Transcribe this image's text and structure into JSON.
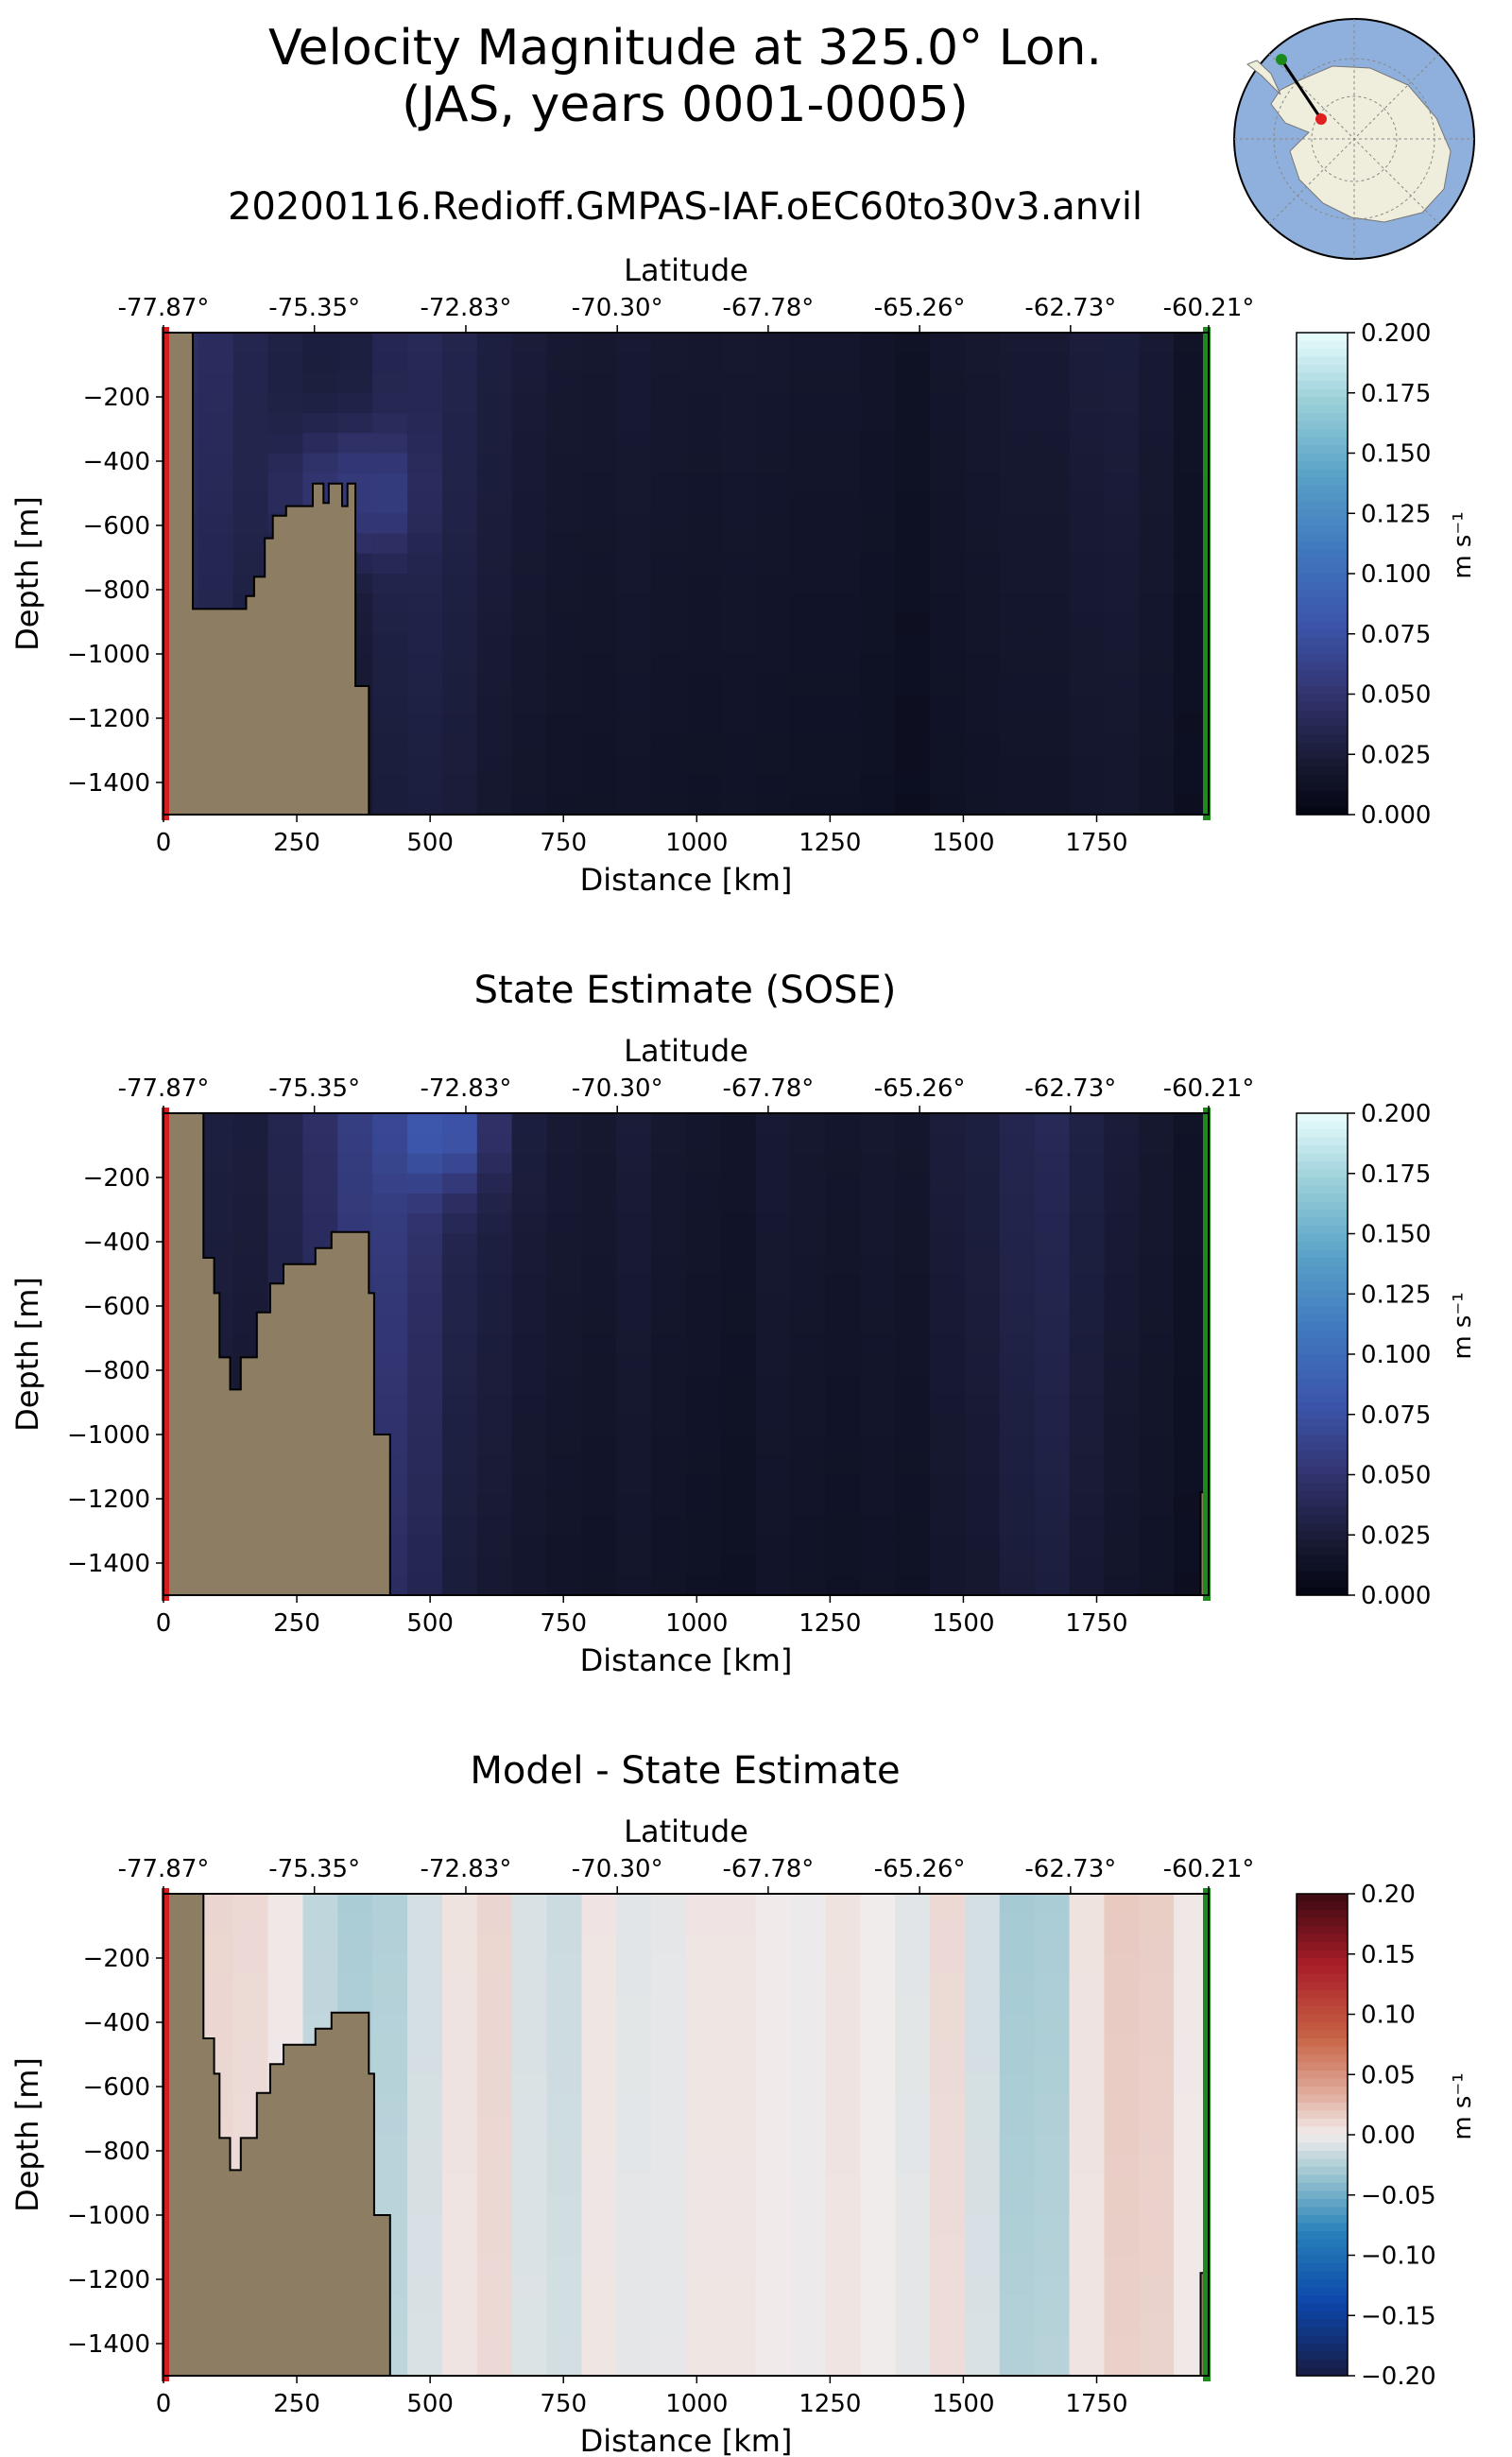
{
  "figure": {
    "title_line1": "Velocity Magnitude at 325.0° Lon.",
    "title_line2": "(JAS, years 0001-0005)",
    "inset_map": "antarctica-map-inset"
  },
  "chart_data": [
    {
      "type": "heatmap",
      "id": "model",
      "title": "20200116.Redioff.GMPAS-IAF.oEC60to30v3.anvil",
      "xlabel": "Distance [km]",
      "ylabel": "Depth [m]",
      "top_xlabel": "Latitude",
      "xlim": [
        0,
        1960
      ],
      "ylim": [
        -1500,
        0
      ],
      "xticks": [
        0,
        250,
        500,
        750,
        1000,
        1250,
        1500,
        1750
      ],
      "yticks": [
        -200,
        -400,
        -600,
        -800,
        -1000,
        -1200,
        -1400
      ],
      "lat_ticks": [
        "-77.87°",
        "-75.35°",
        "-72.83°",
        "-70.30°",
        "-67.78°",
        "-65.26°",
        "-62.73°",
        "-60.21°"
      ],
      "lat_tick_distances": [
        0,
        283,
        567,
        851,
        1134,
        1418,
        1701,
        1960
      ],
      "colorbar": {
        "label": "m s⁻¹",
        "ticks": [
          "0.000",
          "0.025",
          "0.050",
          "0.075",
          "0.100",
          "0.125",
          "0.150",
          "0.175",
          "0.200"
        ],
        "min": 0,
        "max": 0.2,
        "colormap": "ice"
      },
      "bathymetry": [
        [
          0,
          -1500
        ],
        [
          0,
          0
        ],
        [
          55,
          0
        ],
        [
          55,
          -860
        ],
        [
          155,
          -860
        ],
        [
          155,
          -820
        ],
        [
          170,
          -820
        ],
        [
          170,
          -760
        ],
        [
          190,
          -760
        ],
        [
          190,
          -640
        ],
        [
          205,
          -640
        ],
        [
          205,
          -570
        ],
        [
          230,
          -570
        ],
        [
          230,
          -540
        ],
        [
          280,
          -540
        ],
        [
          280,
          -470
        ],
        [
          300,
          -470
        ],
        [
          300,
          -530
        ],
        [
          310,
          -530
        ],
        [
          310,
          -470
        ],
        [
          335,
          -470
        ],
        [
          335,
          -540
        ],
        [
          345,
          -540
        ],
        [
          345,
          -470
        ],
        [
          360,
          -470
        ],
        [
          360,
          -1100
        ],
        [
          385,
          -1100
        ],
        [
          385,
          -1500
        ]
      ],
      "field_columns": [
        0.045,
        0.042,
        0.035,
        0.03,
        0.027,
        0.028,
        0.036,
        0.038,
        0.034,
        0.028,
        0.024,
        0.021,
        0.02,
        0.022,
        0.02,
        0.019,
        0.02,
        0.019,
        0.018,
        0.018,
        0.016,
        0.013,
        0.018,
        0.02,
        0.022,
        0.022,
        0.025,
        0.026,
        0.022,
        0.014
      ],
      "field_blobs": [
        {
          "x": 380,
          "y": -500,
          "v": 0.065
        },
        {
          "x": 300,
          "y": -500,
          "v": 0.05
        }
      ],
      "field_depth_decay": 0.0008,
      "left_marker": "red",
      "right_marker": "green"
    },
    {
      "type": "heatmap",
      "id": "sose",
      "title": "State Estimate (SOSE)",
      "xlabel": "Distance [km]",
      "ylabel": "Depth [m]",
      "top_xlabel": "Latitude",
      "xlim": [
        0,
        1960
      ],
      "ylim": [
        -1500,
        0
      ],
      "xticks": [
        0,
        250,
        500,
        750,
        1000,
        1250,
        1500,
        1750
      ],
      "yticks": [
        -200,
        -400,
        -600,
        -800,
        -1000,
        -1200,
        -1400
      ],
      "lat_ticks": [
        "-77.87°",
        "-75.35°",
        "-72.83°",
        "-70.30°",
        "-67.78°",
        "-65.26°",
        "-62.73°",
        "-60.21°"
      ],
      "lat_tick_distances": [
        0,
        283,
        567,
        851,
        1134,
        1418,
        1701,
        1960
      ],
      "colorbar": {
        "label": "m s⁻¹",
        "ticks": [
          "0.000",
          "0.025",
          "0.050",
          "0.075",
          "0.100",
          "0.125",
          "0.150",
          "0.175",
          "0.200"
        ],
        "min": 0,
        "max": 0.2,
        "colormap": "ice"
      },
      "bathymetry": [
        [
          0,
          -1500
        ],
        [
          0,
          0
        ],
        [
          75,
          0
        ],
        [
          75,
          -450
        ],
        [
          95,
          -450
        ],
        [
          95,
          -560
        ],
        [
          105,
          -560
        ],
        [
          105,
          -760
        ],
        [
          125,
          -760
        ],
        [
          125,
          -860
        ],
        [
          145,
          -860
        ],
        [
          145,
          -760
        ],
        [
          175,
          -760
        ],
        [
          175,
          -620
        ],
        [
          200,
          -620
        ],
        [
          200,
          -530
        ],
        [
          225,
          -530
        ],
        [
          225,
          -470
        ],
        [
          285,
          -470
        ],
        [
          285,
          -420
        ],
        [
          315,
          -420
        ],
        [
          315,
          -370
        ],
        [
          385,
          -370
        ],
        [
          385,
          -560
        ],
        [
          395,
          -560
        ],
        [
          395,
          -1000
        ],
        [
          425,
          -1000
        ],
        [
          425,
          -1500
        ]
      ],
      "bathymetry_right": [
        [
          1945,
          -1500
        ],
        [
          1945,
          -1180
        ],
        [
          1960,
          -1180
        ],
        [
          1960,
          -1500
        ]
      ],
      "field_columns": [
        0.03,
        0.028,
        0.026,
        0.035,
        0.045,
        0.058,
        0.06,
        0.05,
        0.036,
        0.03,
        0.025,
        0.022,
        0.02,
        0.024,
        0.02,
        0.018,
        0.016,
        0.022,
        0.02,
        0.018,
        0.02,
        0.018,
        0.025,
        0.028,
        0.035,
        0.038,
        0.03,
        0.024,
        0.02,
        0.014
      ],
      "field_blobs": [
        {
          "x": 520,
          "y": -60,
          "v": 0.085
        }
      ],
      "field_depth_decay": 0.0008,
      "left_marker": "red",
      "right_marker": "green"
    },
    {
      "type": "heatmap",
      "id": "difference",
      "title": "Model - State Estimate",
      "xlabel": "Distance [km]",
      "ylabel": "Depth [m]",
      "top_xlabel": "Latitude",
      "xlim": [
        0,
        1960
      ],
      "ylim": [
        -1500,
        0
      ],
      "xticks": [
        0,
        250,
        500,
        750,
        1000,
        1250,
        1500,
        1750
      ],
      "yticks": [
        -200,
        -400,
        -600,
        -800,
        -1000,
        -1200,
        -1400
      ],
      "lat_ticks": [
        "-77.87°",
        "-75.35°",
        "-72.83°",
        "-70.30°",
        "-67.78°",
        "-65.26°",
        "-62.73°",
        "-60.21°"
      ],
      "lat_tick_distances": [
        0,
        283,
        567,
        851,
        1134,
        1418,
        1701,
        1960
      ],
      "colorbar": {
        "label": "m s⁻¹",
        "ticks": [
          "0.20",
          "0.15",
          "0.10",
          "0.05",
          "0.00",
          "−0.05",
          "−0.10",
          "−0.15",
          "−0.20"
        ],
        "min": -0.2,
        "max": 0.2,
        "colormap": "balance"
      },
      "bathymetry": [
        [
          0,
          -1500
        ],
        [
          0,
          0
        ],
        [
          75,
          0
        ],
        [
          75,
          -450
        ],
        [
          95,
          -450
        ],
        [
          95,
          -560
        ],
        [
          105,
          -560
        ],
        [
          105,
          -760
        ],
        [
          125,
          -760
        ],
        [
          125,
          -860
        ],
        [
          145,
          -860
        ],
        [
          145,
          -760
        ],
        [
          175,
          -760
        ],
        [
          175,
          -620
        ],
        [
          200,
          -620
        ],
        [
          200,
          -530
        ],
        [
          225,
          -530
        ],
        [
          225,
          -470
        ],
        [
          285,
          -470
        ],
        [
          285,
          -420
        ],
        [
          315,
          -420
        ],
        [
          315,
          -370
        ],
        [
          385,
          -370
        ],
        [
          385,
          -560
        ],
        [
          395,
          -560
        ],
        [
          395,
          -1000
        ],
        [
          425,
          -1000
        ],
        [
          425,
          -1500
        ]
      ],
      "bathymetry_right": [
        [
          1945,
          -1500
        ],
        [
          1945,
          -1180
        ],
        [
          1960,
          -1180
        ],
        [
          1960,
          -1500
        ]
      ],
      "field_columns": [
        0.01,
        0.012,
        0.01,
        0.002,
        -0.02,
        -0.028,
        -0.025,
        -0.012,
        0.005,
        0.012,
        -0.01,
        -0.015,
        0.004,
        -0.006,
        -0.005,
        0.004,
        0.004,
        0.001,
        -0.002,
        0.005,
        0.0,
        -0.006,
        0.01,
        -0.012,
        -0.03,
        -0.028,
        0.005,
        0.018,
        0.016,
        0.002
      ],
      "field_blobs": [],
      "field_depth_decay": 0.0005,
      "left_marker": "red",
      "right_marker": "green"
    }
  ]
}
